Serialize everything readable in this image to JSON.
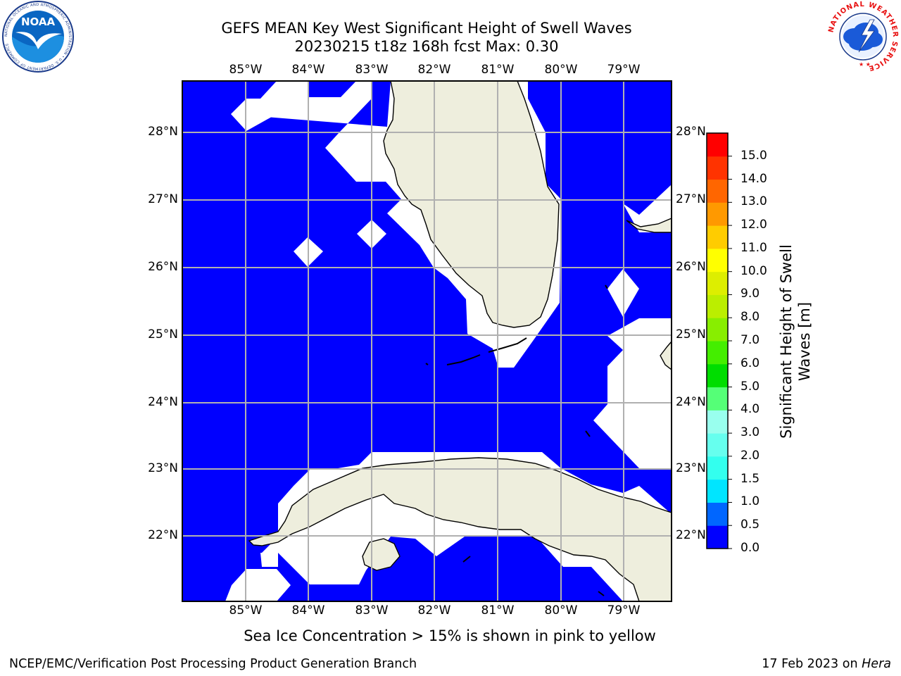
{
  "title": {
    "line1": "GEFS MEAN Key West Significant Height of Swell Waves",
    "line2": "20230215 t18z 168h fcst   Max: 0.30"
  },
  "map": {
    "lon_labels": [
      "85°W",
      "84°W",
      "83°W",
      "82°W",
      "81°W",
      "80°W",
      "79°W"
    ],
    "lat_labels": [
      "28°N",
      "27°N",
      "26°N",
      "25°N",
      "24°N",
      "23°N",
      "22°N"
    ],
    "ocean_color": "#0000ff",
    "land_color": "#eeeedd",
    "nodata_color": "#ffffff",
    "gridline_color": "#b0b0b0"
  },
  "colorbar": {
    "label": "Significant Height of Swell Waves [m]",
    "ticks": [
      "0.0",
      "0.5",
      "1.0",
      "1.5",
      "2.0",
      "3.0",
      "4.0",
      "5.0",
      "6.0",
      "7.0",
      "8.0",
      "9.0",
      "10.0",
      "11.0",
      "12.0",
      "13.0",
      "14.0",
      "15.0"
    ],
    "colors": [
      "#0000ff",
      "#0066ff",
      "#00e5ff",
      "#33ffee",
      "#66ffee",
      "#99ffee",
      "#55ff77",
      "#00dd00",
      "#44ee00",
      "#88ee00",
      "#bbee00",
      "#ddee00",
      "#ffff00",
      "#ffcc00",
      "#ff9900",
      "#ff6600",
      "#ff3300",
      "#ff0000"
    ]
  },
  "ice_note": "Sea Ice Concentration > 15% is shown in pink to yellow",
  "footer": {
    "left": "NCEP/EMC/Verification Post Processing Product Generation Branch",
    "date": "17 Feb 2023 on",
    "machine": "Hera"
  },
  "logos": {
    "noaa": {
      "text": "NOAA",
      "ring_text": "NATIONAL OCEANIC AND ATMOSPHERIC ADMINISTRATION • U.S. DEPARTMENT OF COMMERCE"
    },
    "nws": {
      "ring_text": "NATIONAL WEATHER SERVICE"
    }
  }
}
